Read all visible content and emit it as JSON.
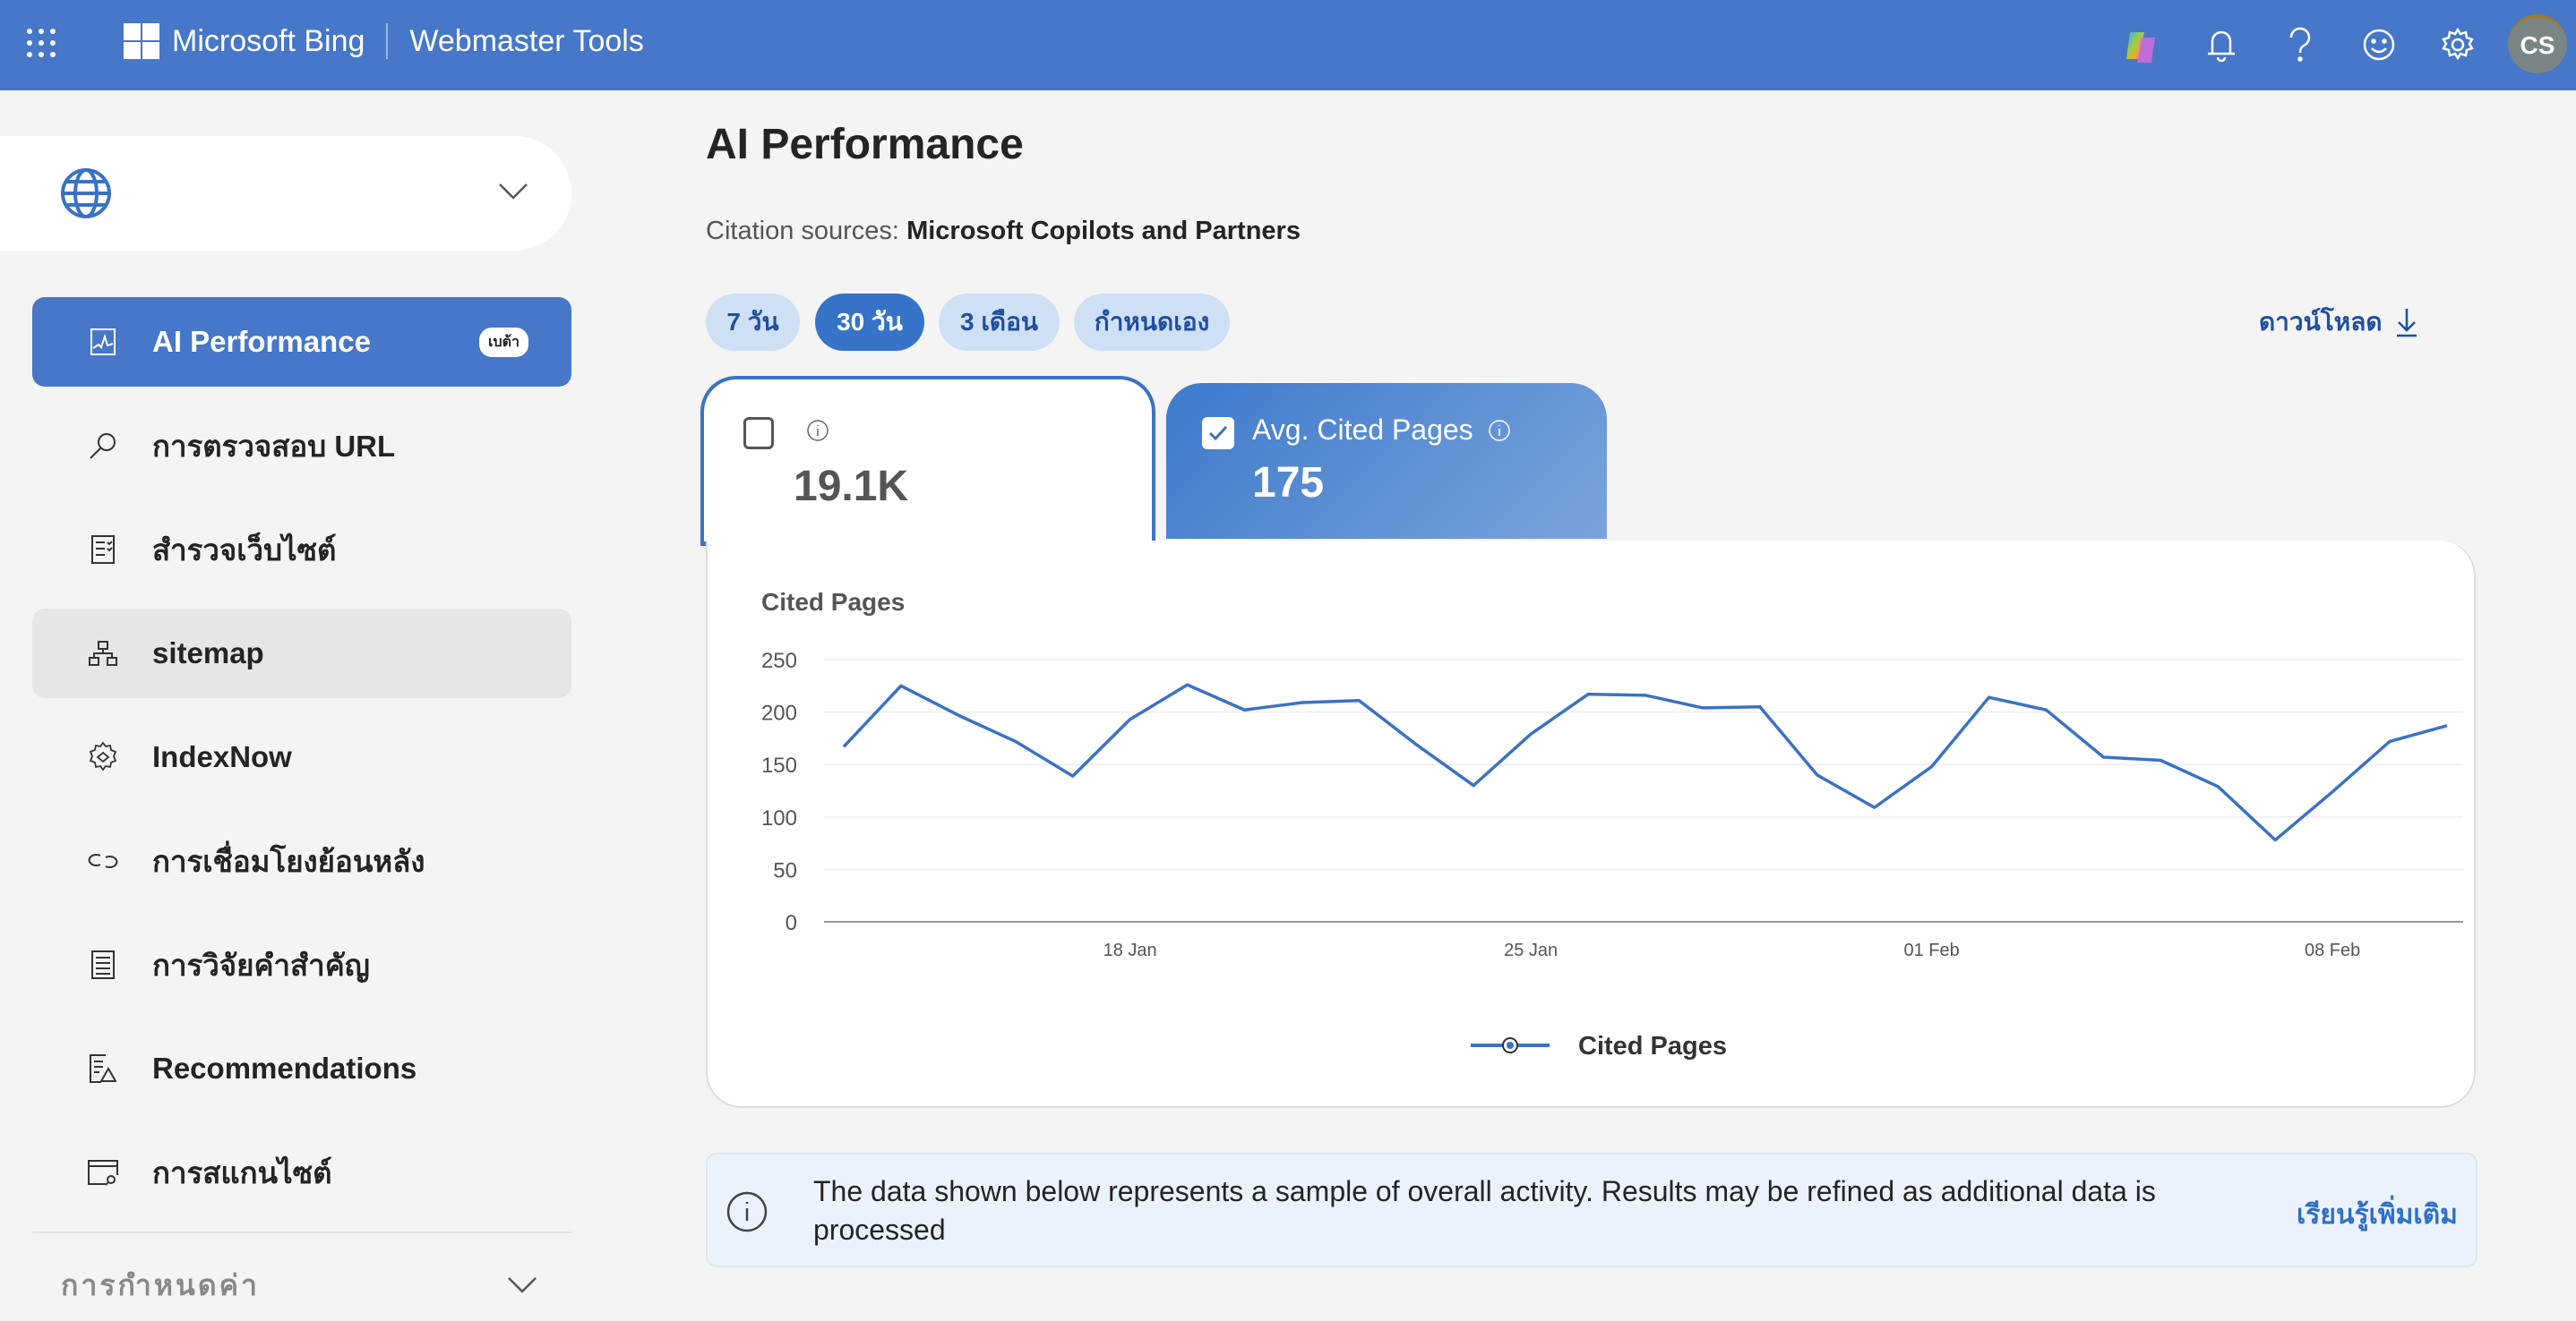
{
  "header": {
    "brand": "Microsoft Bing",
    "product": "Webmaster Tools",
    "avatar": "CS"
  },
  "sidebar": {
    "items": [
      {
        "label": "AI Performance",
        "badge": "เบต้า"
      },
      {
        "label": "การตรวจสอบ URL"
      },
      {
        "label": "สำรวจเว็บไซต์"
      },
      {
        "label": "sitemap"
      },
      {
        "label": "IndexNow"
      },
      {
        "label": "การเชื่อมโยงย้อนหลัง"
      },
      {
        "label": "การวิจัยคำสำคัญ"
      },
      {
        "label": "Recommendations"
      },
      {
        "label": "การสแกนไซต์"
      }
    ],
    "settings": "การกำหนดค่า"
  },
  "main": {
    "title": "AI Performance",
    "citation_label": "Citation sources:",
    "citation_value": "Microsoft Copilots and Partners",
    "ranges": [
      "7 วัน",
      "30 วัน",
      "3 เดือน",
      "กำหนดเอง"
    ],
    "download": "ดาวน์โหลด",
    "card1": {
      "value": "19.1K",
      "checked": false
    },
    "card2": {
      "label": "Avg. Cited Pages",
      "value": "175",
      "checked": true
    },
    "info_text": "The data shown below represents a sample of overall activity. Results may be refined as additional data is processed",
    "learn_more": "เรียนรู้เพิ่มเติม"
  },
  "chart_data": {
    "type": "line",
    "title": "Cited Pages",
    "x": [
      "13 Jan",
      "14 Jan",
      "15 Jan",
      "16 Jan",
      "17 Jan",
      "18 Jan",
      "19 Jan",
      "20 Jan",
      "21 Jan",
      "22 Jan",
      "23 Jan",
      "24 Jan",
      "25 Jan",
      "26 Jan",
      "27 Jan",
      "28 Jan",
      "29 Jan",
      "30 Jan",
      "31 Jan",
      "01 Feb",
      "02 Feb",
      "03 Feb",
      "04 Feb",
      "05 Feb",
      "06 Feb",
      "07 Feb",
      "08 Feb",
      "09 Feb",
      "10 Feb"
    ],
    "series": [
      {
        "name": "Cited Pages",
        "color": "#3a72c4",
        "values": [
          167,
          225,
          197,
          172,
          139,
          193,
          226,
          202,
          209,
          211,
          169,
          130,
          179,
          217,
          216,
          204,
          205,
          140,
          109,
          148,
          214,
          202,
          157,
          154,
          129,
          78,
          124,
          172,
          187
        ]
      }
    ],
    "xticks": [
      "18 Jan",
      "25 Jan",
      "01 Feb",
      "08 Feb"
    ],
    "yticks": [
      0,
      50,
      100,
      150,
      200,
      250
    ],
    "ylim": [
      0,
      250
    ],
    "legend": "bottom-center"
  }
}
